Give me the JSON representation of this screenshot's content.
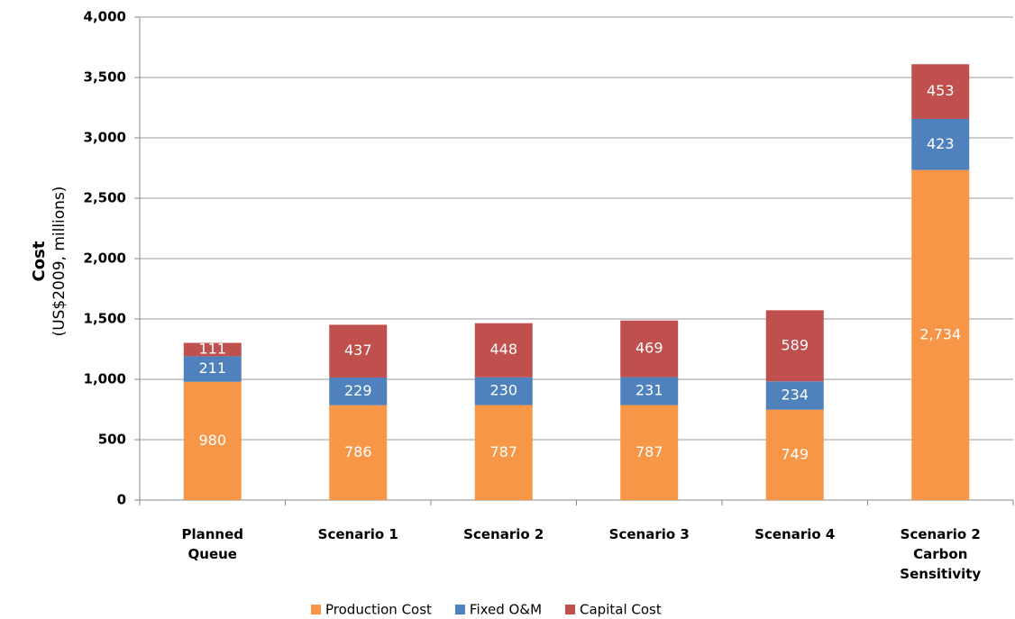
{
  "chart_data": {
    "type": "stacked_bar",
    "y_label": "Cost",
    "y_sublabel": "(US$2009, millions)",
    "categories": [
      "Planned Queue",
      "Scenario 1",
      "Scenario 2",
      "Scenario 3",
      "Scenario 4",
      "Scenario 2 Carbon Sensitivity"
    ],
    "series": [
      {
        "name": "Production Cost",
        "color": "#f79646",
        "values": [
          980,
          786,
          787,
          787,
          749,
          2734
        ],
        "value_labels": [
          "980",
          "786",
          "787",
          "787",
          "749",
          "2,734"
        ]
      },
      {
        "name": "Fixed O&M",
        "color": "#4f81bd",
        "values": [
          211,
          229,
          230,
          231,
          234,
          423
        ]
      },
      {
        "name": "Capital Cost",
        "color": "#c0504d",
        "values": [
          111,
          437,
          448,
          469,
          589,
          453
        ]
      }
    ],
    "ylim": [
      0,
      4000
    ],
    "yticks": [
      0,
      {
        "value": 500,
        "label": "500"
      },
      {
        "value": 1000,
        "label": "1,000"
      },
      {
        "value": 1500,
        "label": "1,500"
      },
      {
        "value": 2000,
        "label": "2,000"
      },
      {
        "value": 2500,
        "label": "2,500"
      },
      {
        "value": 3000,
        "label": "3,000"
      },
      {
        "value": 3500,
        "label": "3,500"
      },
      {
        "value": 4000,
        "label": "4,000"
      }
    ],
    "grid": true,
    "legend": "bottom"
  }
}
